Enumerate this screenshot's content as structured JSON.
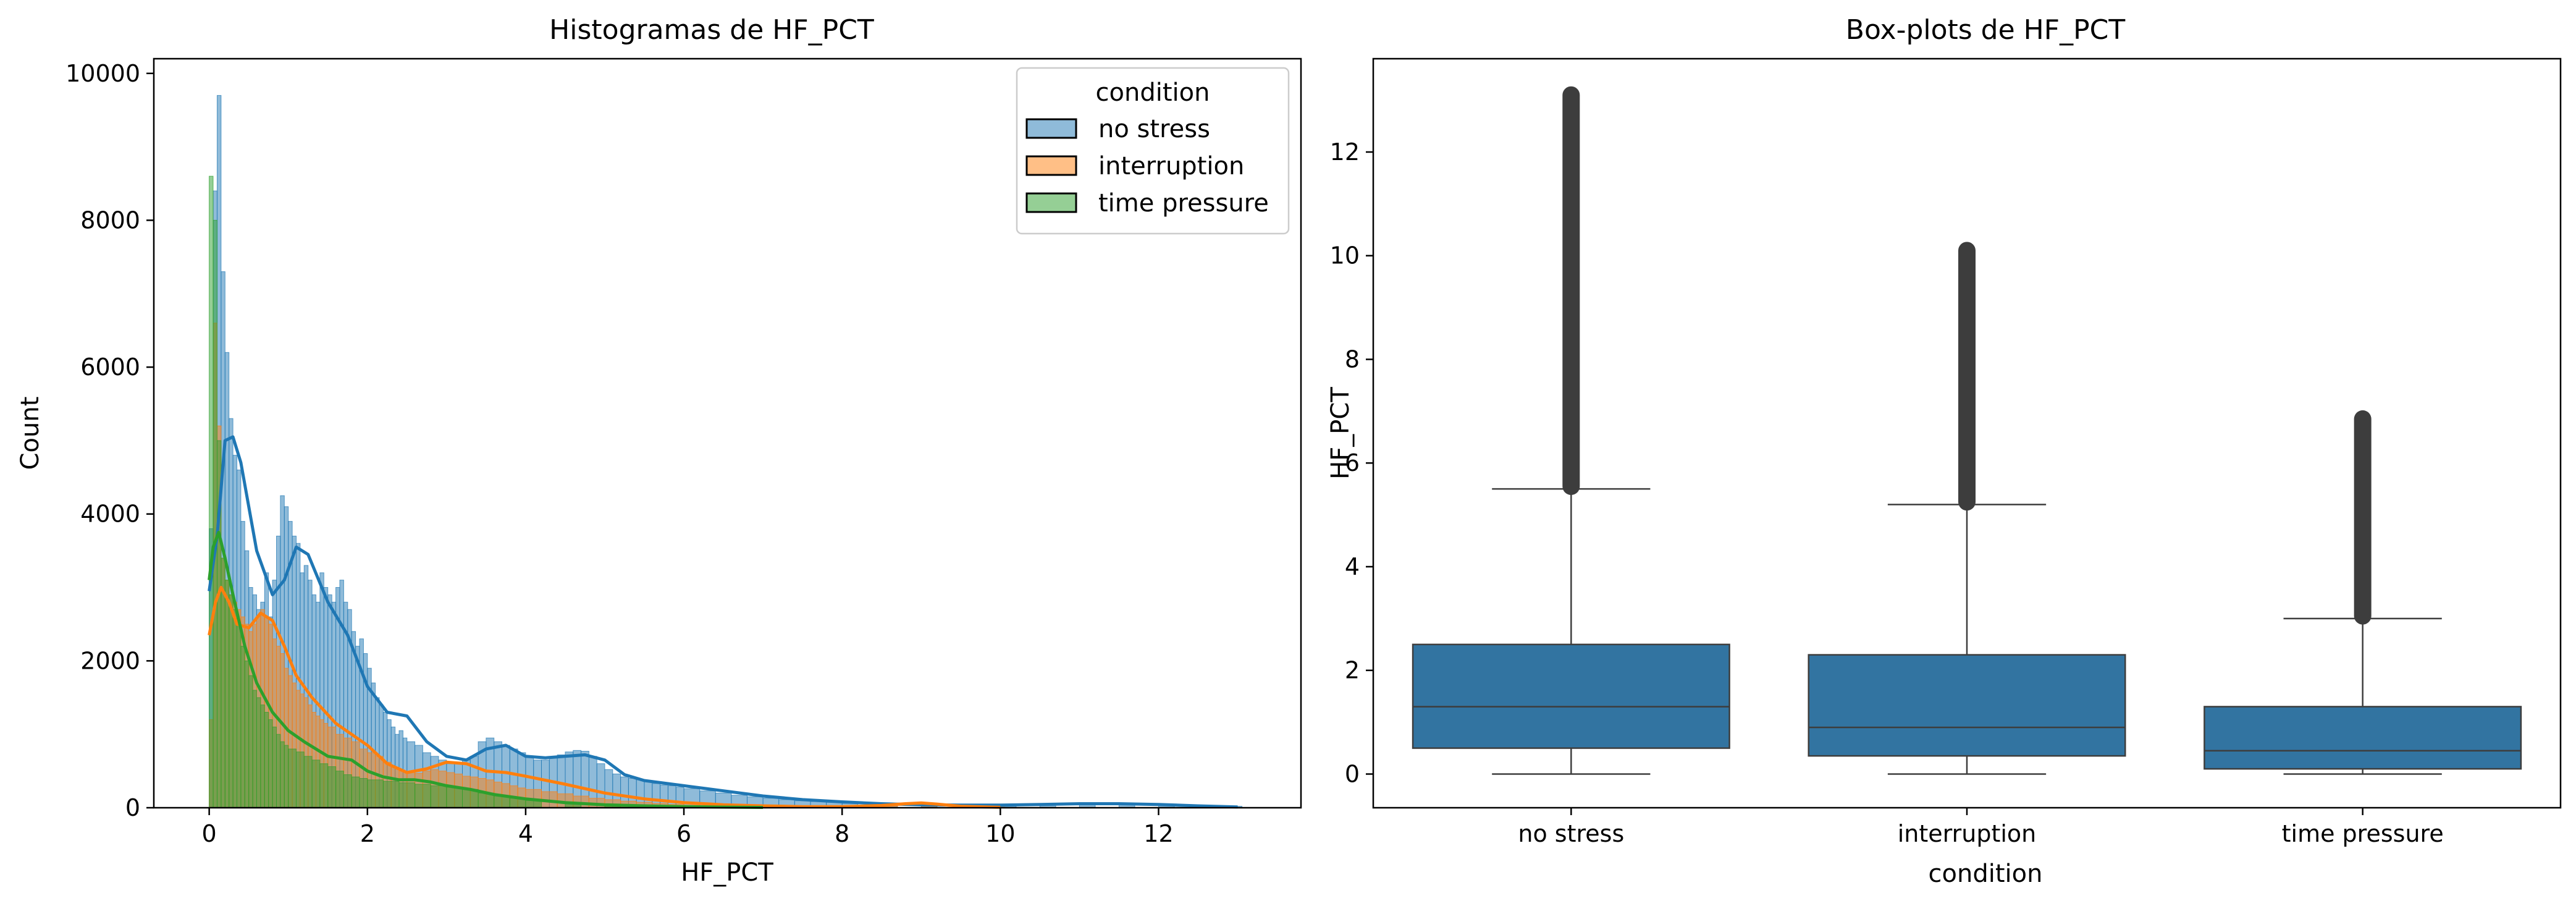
{
  "colors": {
    "no_stress": "#1f77b4",
    "interruption": "#ff7f0e",
    "time_pressure": "#2ca02c",
    "box_fill": "#3274a1",
    "box_edge": "#3d3d3d"
  },
  "chart_data": [
    {
      "type": "histogram",
      "title": "Histogramas de HF_PCT",
      "xlabel": "HF_PCT",
      "ylabel": "Count",
      "xlim": [
        -0.7,
        13.8
      ],
      "ylim": [
        0,
        10200
      ],
      "xticks": [
        0,
        2,
        4,
        6,
        8,
        10,
        12
      ],
      "yticks": [
        0,
        2000,
        4000,
        6000,
        8000,
        10000
      ],
      "legend": {
        "title": "condition",
        "position": "top-right"
      },
      "bin_width": 0.055,
      "kde": true,
      "series": [
        {
          "name": "no stress",
          "color_key": "no_stress",
          "x": [
            0.0,
            0.05,
            0.1,
            0.15,
            0.2,
            0.25,
            0.3,
            0.35,
            0.4,
            0.45,
            0.5,
            0.55,
            0.6,
            0.65,
            0.7,
            0.75,
            0.8,
            0.85,
            0.9,
            0.95,
            1.0,
            1.05,
            1.1,
            1.15,
            1.2,
            1.25,
            1.3,
            1.35,
            1.4,
            1.45,
            1.5,
            1.55,
            1.6,
            1.65,
            1.7,
            1.75,
            1.8,
            1.85,
            1.9,
            1.95,
            2.0,
            2.05,
            2.1,
            2.15,
            2.2,
            2.25,
            2.3,
            2.35,
            2.4,
            2.45,
            2.5,
            2.6,
            2.7,
            2.8,
            2.9,
            3.0,
            3.1,
            3.2,
            3.3,
            3.4,
            3.5,
            3.6,
            3.7,
            3.8,
            3.9,
            4.0,
            4.1,
            4.2,
            4.3,
            4.4,
            4.5,
            4.6,
            4.7,
            4.8,
            4.9,
            5.0,
            5.1,
            5.2,
            5.3,
            5.4,
            5.5,
            5.6,
            5.7,
            5.8,
            5.9,
            6.0,
            6.2,
            6.4,
            6.6,
            6.8,
            7.0,
            7.2,
            7.4,
            7.6,
            7.8,
            8.0,
            8.5,
            9.0,
            9.5,
            10.0,
            10.5,
            11.0,
            11.5,
            12.0,
            12.5,
            13.0
          ],
          "counts": [
            3800,
            8400,
            9700,
            7300,
            6200,
            5300,
            4800,
            4600,
            3900,
            3500,
            3000,
            2900,
            2700,
            2800,
            3200,
            2600,
            3100,
            3700,
            4250,
            4100,
            3900,
            3700,
            3600,
            3200,
            3300,
            3100,
            2900,
            2800,
            3200,
            3000,
            2900,
            2800,
            3000,
            3100,
            2800,
            2700,
            2400,
            2200,
            2300,
            2100,
            1900,
            1700,
            1500,
            1400,
            1300,
            1200,
            1100,
            1000,
            1050,
            950,
            900,
            850,
            750,
            700,
            650,
            600,
            620,
            650,
            700,
            900,
            950,
            900,
            850,
            800,
            750,
            700,
            650,
            650,
            680,
            720,
            760,
            780,
            770,
            700,
            600,
            520,
            460,
            420,
            400,
            380,
            360,
            330,
            310,
            300,
            280,
            260,
            230,
            200,
            170,
            150,
            130,
            110,
            95,
            85,
            75,
            60,
            40,
            30,
            30,
            35,
            40,
            45,
            40,
            35,
            30,
            20
          ],
          "kde": {
            "x": [
              0.0,
              0.1,
              0.2,
              0.3,
              0.4,
              0.6,
              0.8,
              0.95,
              1.1,
              1.25,
              1.5,
              1.75,
              2.0,
              2.25,
              2.5,
              2.75,
              3.0,
              3.25,
              3.5,
              3.75,
              4.0,
              4.25,
              4.5,
              4.75,
              5.0,
              5.25,
              5.5,
              6.0,
              6.5,
              7.0,
              7.5,
              8.0,
              8.5,
              9.0,
              9.5,
              10.0,
              10.5,
              11.0,
              11.5,
              12.0,
              12.5,
              13.0
            ],
            "y": [
              2950,
              3700,
              5000,
              5050,
              4700,
              3500,
              2900,
              3100,
              3550,
              3450,
              2800,
              2350,
              1650,
              1300,
              1250,
              900,
              700,
              650,
              800,
              850,
              700,
              680,
              700,
              720,
              650,
              450,
              370,
              300,
              230,
              160,
              110,
              80,
              55,
              40,
              35,
              35,
              45,
              55,
              55,
              45,
              25,
              10
            ]
          }
        },
        {
          "name": "interruption",
          "color_key": "interruption",
          "x": [
            0.0,
            0.05,
            0.1,
            0.15,
            0.2,
            0.25,
            0.3,
            0.35,
            0.4,
            0.45,
            0.5,
            0.55,
            0.6,
            0.65,
            0.7,
            0.75,
            0.8,
            0.85,
            0.9,
            0.95,
            1.0,
            1.05,
            1.1,
            1.15,
            1.2,
            1.25,
            1.3,
            1.35,
            1.4,
            1.45,
            1.5,
            1.6,
            1.7,
            1.8,
            1.9,
            2.0,
            2.1,
            2.2,
            2.3,
            2.4,
            2.5,
            2.6,
            2.7,
            2.8,
            2.9,
            3.0,
            3.1,
            3.2,
            3.3,
            3.4,
            3.5,
            3.6,
            3.7,
            3.8,
            3.9,
            4.0,
            4.2,
            4.4,
            4.6,
            4.8,
            5.0,
            5.2,
            5.4,
            5.6,
            5.8,
            6.0,
            6.5,
            7.0,
            7.5,
            8.0,
            8.5,
            9.0,
            9.5,
            10.0
          ],
          "counts": [
            1200,
            6600,
            5200,
            3400,
            3100,
            2900,
            2800,
            2700,
            2600,
            2500,
            2400,
            2500,
            2600,
            2700,
            2600,
            2500,
            2300,
            2200,
            2100,
            1900,
            1800,
            1700,
            1600,
            1550,
            1500,
            1400,
            1300,
            1250,
            1200,
            1150,
            1100,
            1000,
            950,
            900,
            800,
            750,
            700,
            620,
            550,
            500,
            480,
            470,
            500,
            520,
            500,
            480,
            460,
            430,
            420,
            400,
            380,
            350,
            330,
            300,
            270,
            250,
            220,
            190,
            160,
            130,
            110,
            90,
            75,
            60,
            45,
            35,
            25,
            18,
            14,
            12,
            40,
            60,
            20,
            8
          ],
          "kde": {
            "x": [
              0.0,
              0.08,
              0.15,
              0.25,
              0.35,
              0.5,
              0.65,
              0.8,
              0.95,
              1.1,
              1.3,
              1.6,
              2.0,
              2.25,
              2.5,
              2.75,
              3.0,
              3.25,
              3.5,
              3.75,
              4.0,
              4.5,
              5.0,
              5.5,
              6.0,
              6.5,
              7.0,
              7.5,
              8.0,
              8.5,
              8.8,
              9.0,
              9.2,
              9.5,
              10.0
            ],
            "y": [
              2350,
              2800,
              3000,
              2800,
              2500,
              2450,
              2650,
              2550,
              2200,
              1800,
              1500,
              1150,
              850,
              600,
              480,
              530,
              620,
              600,
              500,
              480,
              430,
              320,
              200,
              120,
              70,
              40,
              25,
              15,
              15,
              30,
              55,
              65,
              50,
              20,
              5
            ]
          }
        },
        {
          "name": "time pressure",
          "color_key": "time_pressure",
          "x": [
            0.0,
            0.05,
            0.1,
            0.15,
            0.2,
            0.25,
            0.3,
            0.35,
            0.4,
            0.45,
            0.5,
            0.55,
            0.6,
            0.65,
            0.7,
            0.75,
            0.8,
            0.85,
            0.9,
            0.95,
            1.0,
            1.1,
            1.2,
            1.3,
            1.4,
            1.5,
            1.6,
            1.7,
            1.8,
            1.9,
            2.0,
            2.2,
            2.4,
            2.6,
            2.8,
            3.0,
            3.2,
            3.4,
            3.6,
            3.8,
            4.0,
            4.5,
            5.0,
            5.5,
            6.0,
            6.5,
            7.0
          ],
          "counts": [
            8600,
            8000,
            5000,
            3400,
            3100,
            2900,
            2700,
            2500,
            2200,
            2000,
            1800,
            1600,
            1500,
            1400,
            1300,
            1200,
            1100,
            1000,
            900,
            850,
            800,
            760,
            700,
            650,
            600,
            560,
            500,
            450,
            420,
            400,
            380,
            360,
            340,
            320,
            300,
            280,
            250,
            200,
            160,
            130,
            100,
            70,
            45,
            30,
            20,
            10,
            5
          ],
          "kde": {
            "x": [
              0.0,
              0.05,
              0.12,
              0.2,
              0.3,
              0.45,
              0.6,
              0.8,
              1.0,
              1.2,
              1.5,
              1.8,
              2.0,
              2.2,
              2.4,
              2.6,
              2.8,
              3.0,
              3.3,
              3.6,
              4.0,
              4.5,
              5.0,
              5.5,
              6.0,
              6.5,
              7.0
            ],
            "y": [
              3100,
              3550,
              3750,
              3400,
              2900,
              2200,
              1700,
              1300,
              1050,
              900,
              700,
              650,
              500,
              420,
              380,
              380,
              350,
              300,
              250,
              180,
              120,
              70,
              40,
              25,
              15,
              8,
              4
            ]
          }
        }
      ]
    },
    {
      "type": "boxplot",
      "title": "Box-plots de HF_PCT",
      "xlabel": "condition",
      "ylabel": "HF_PCT",
      "categories": [
        "no stress",
        "interruption",
        "time pressure"
      ],
      "ylim": [
        -0.65,
        13.8
      ],
      "yticks": [
        0,
        2,
        4,
        6,
        8,
        10,
        12
      ],
      "boxes": [
        {
          "category": "no stress",
          "min": 0.0,
          "q1": 0.5,
          "median": 1.3,
          "q3": 2.5,
          "whisker_high": 5.5,
          "outliers_from": 5.55,
          "outliers_to": 13.1
        },
        {
          "category": "interruption",
          "min": 0.0,
          "q1": 0.35,
          "median": 0.9,
          "q3": 2.3,
          "whisker_high": 5.2,
          "outliers_from": 5.25,
          "outliers_to": 10.1
        },
        {
          "category": "time pressure",
          "min": 0.0,
          "q1": 0.1,
          "median": 0.45,
          "q3": 1.3,
          "whisker_high": 3.0,
          "outliers_from": 3.05,
          "outliers_to": 6.85
        }
      ]
    }
  ]
}
